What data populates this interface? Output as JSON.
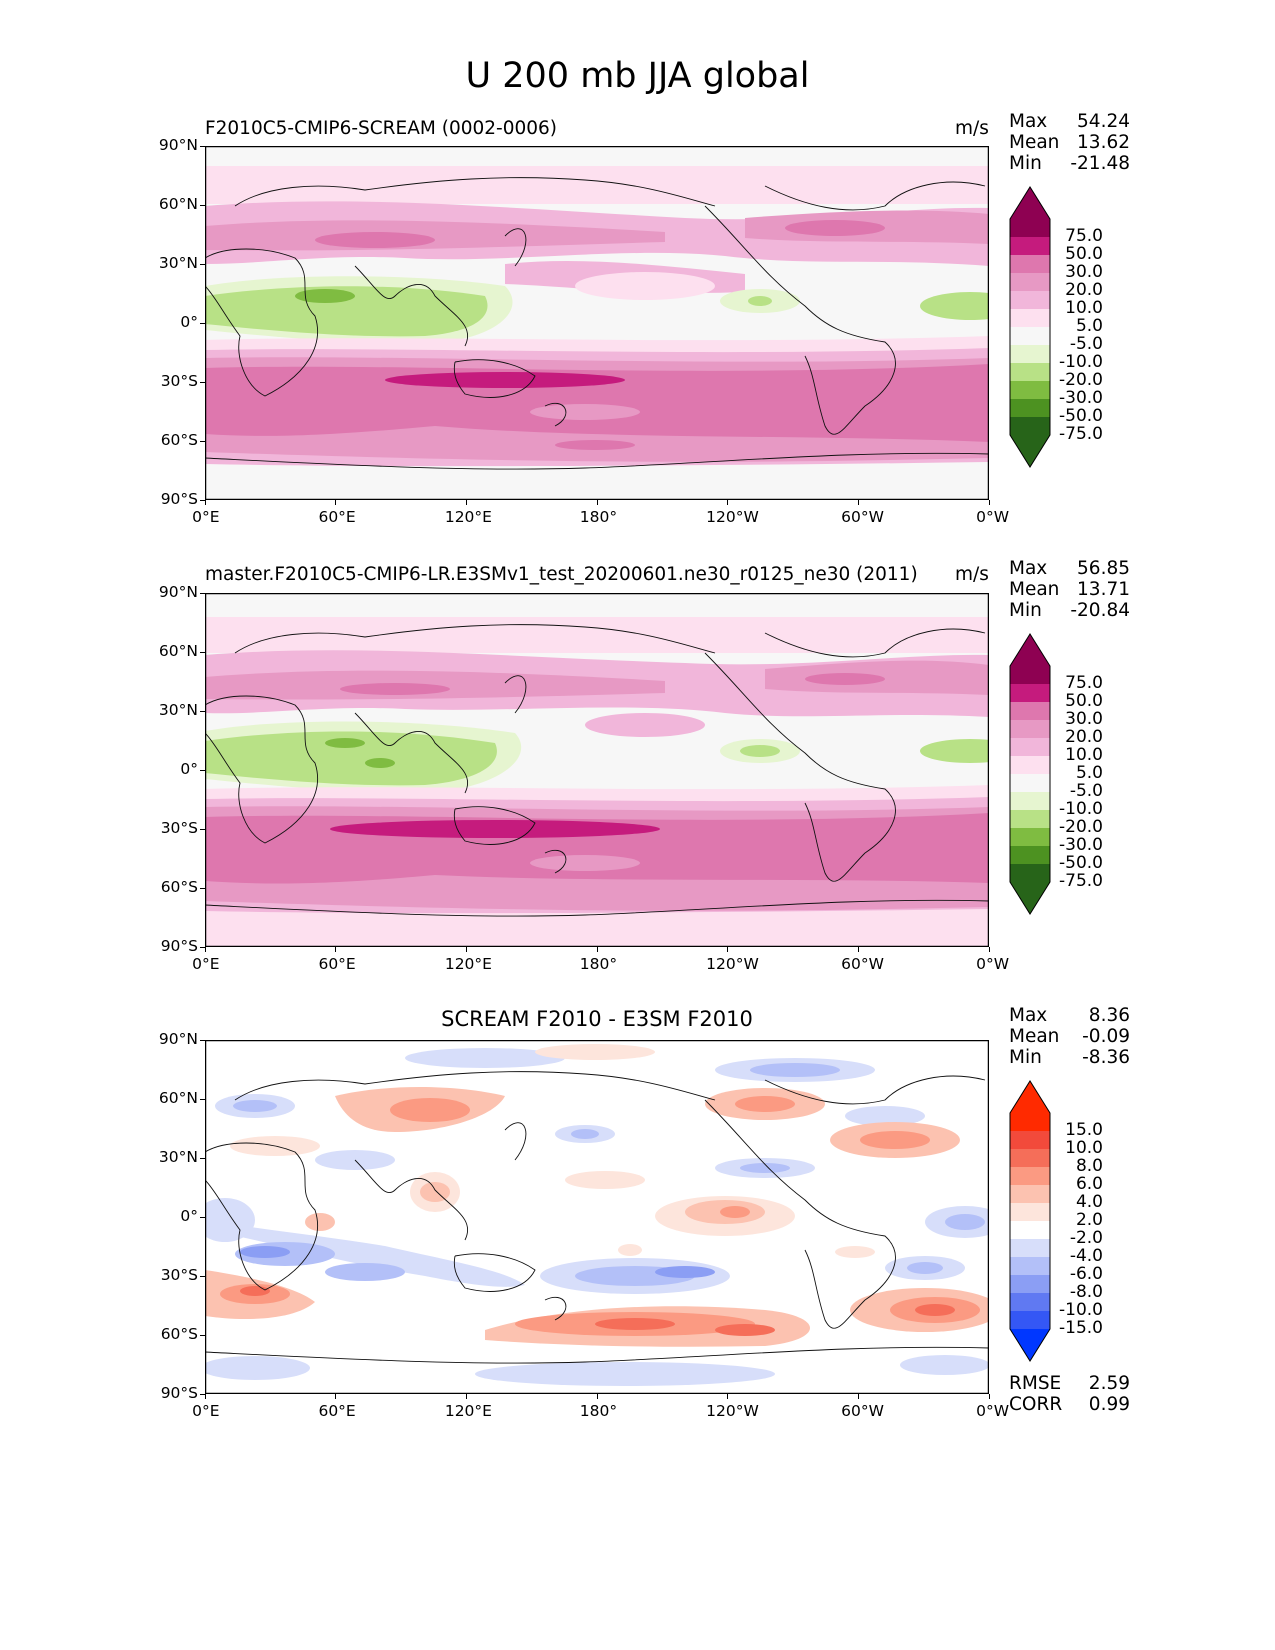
{
  "figure": {
    "title": "U 200 mb JJA global"
  },
  "colormaps": {
    "model": {
      "levels": [
        "75.0",
        "50.0",
        "30.0",
        "20.0",
        "10.0",
        "5.0",
        "-5.0",
        "-10.0",
        "-20.0",
        "-30.0",
        "-50.0",
        "-75.0"
      ],
      "colors": [
        "#8e0152",
        "#c51b7d",
        "#de77ae",
        "#e799c4",
        "#f1b6da",
        "#fde0ef",
        "#f7f7f7",
        "#e6f5d0",
        "#b8e186",
        "#7fbc41",
        "#4d9221",
        "#276419"
      ],
      "top_color": "#8e0152",
      "bottom_color": "#276419"
    },
    "diff": {
      "levels": [
        "15.0",
        "10.0",
        "8.0",
        "6.0",
        "4.0",
        "2.0",
        "-2.0",
        "-4.0",
        "-6.0",
        "-8.0",
        "-10.0",
        "-15.0"
      ],
      "colors": [
        "#ff2a00",
        "#f24a3b",
        "#f56e59",
        "#fb9a82",
        "#fcc2b0",
        "#fde5dc",
        "#ffffff",
        "#d7defa",
        "#b3c0f8",
        "#8b9ef4",
        "#6079f2",
        "#3457f5"
      ],
      "top_color": "#ff2a00",
      "bottom_color": "#0037ff"
    }
  },
  "axes": {
    "x_ticks": [
      "0°E",
      "60°E",
      "120°E",
      "180°",
      "120°W",
      "60°W",
      "0°W"
    ],
    "y_ticks": [
      "90°N",
      "60°N",
      "30°N",
      "0°",
      "30°S",
      "60°S",
      "90°S"
    ]
  },
  "panels": [
    {
      "id": "test",
      "title": "F2010C5-CMIP6-SCREAM (0002-0006)",
      "units": "m/s",
      "stats": [
        {
          "label": "Max",
          "value": "54.24"
        },
        {
          "label": "Mean",
          "value": "13.62"
        },
        {
          "label": "Min",
          "value": "-21.48"
        }
      ]
    },
    {
      "id": "ref",
      "title": "master.F2010C5-CMIP6-LR.E3SMv1_test_20200601.ne30_r0125_ne30 (2011)",
      "units": "m/s",
      "stats": [
        {
          "label": "Max",
          "value": "56.85"
        },
        {
          "label": "Mean",
          "value": "13.71"
        },
        {
          "label": "Min",
          "value": "-20.84"
        }
      ]
    },
    {
      "id": "diff",
      "title": "SCREAM F2010 - E3SM F2010",
      "units": "",
      "stats": [
        {
          "label": "Max",
          "value": "8.36"
        },
        {
          "label": "Mean",
          "value": "-0.09"
        },
        {
          "label": "Min",
          "value": "-8.36"
        }
      ],
      "metrics": [
        {
          "label": "RMSE",
          "value": "2.59"
        },
        {
          "label": "CORR",
          "value": "0.99"
        }
      ]
    }
  ]
}
